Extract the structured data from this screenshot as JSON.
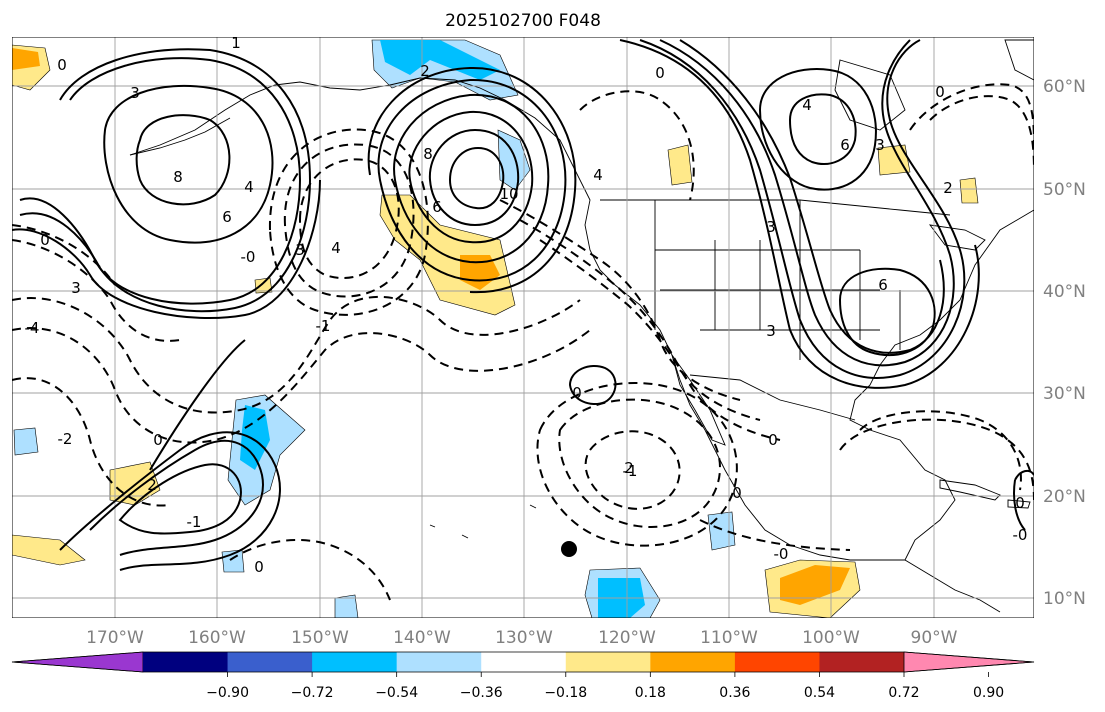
{
  "title": "2025102700 F048",
  "lon_labels": [
    "170°W",
    "160°W",
    "150°W",
    "140°W",
    "130°W",
    "120°W",
    "110°W",
    "100°W",
    "90°W"
  ],
  "lat_labels": [
    "10°N",
    "20°N",
    "30°N",
    "40°N",
    "50°N",
    "60°N"
  ],
  "colorbar": {
    "ticks": [
      "−0.90",
      "−0.72",
      "−0.54",
      "−0.36",
      "−0.18",
      "0.18",
      "0.36",
      "0.54",
      "0.72",
      "0.90"
    ],
    "colors": [
      "#9a37d0",
      "#00007f",
      "#3a5fcd",
      "#00bfff",
      "#aee0ff",
      "#ffffff",
      "#ffe98a",
      "#ffa500",
      "#ff4500",
      "#b22222",
      "#ff88b0"
    ]
  },
  "contour_labels": [
    "0",
    "1",
    "3",
    "8",
    "6",
    "4",
    "0",
    "3",
    "-0",
    "3",
    "4",
    "-4",
    "2",
    "8",
    "6",
    "10",
    "4",
    "6",
    "0",
    "4",
    "6",
    "3",
    "3",
    "2",
    "3",
    "0",
    "-1",
    "0",
    "-2",
    "0",
    "2",
    "-1",
    "0",
    "0",
    "-0",
    "2",
    "-1",
    "0",
    "-0",
    "0"
  ]
}
